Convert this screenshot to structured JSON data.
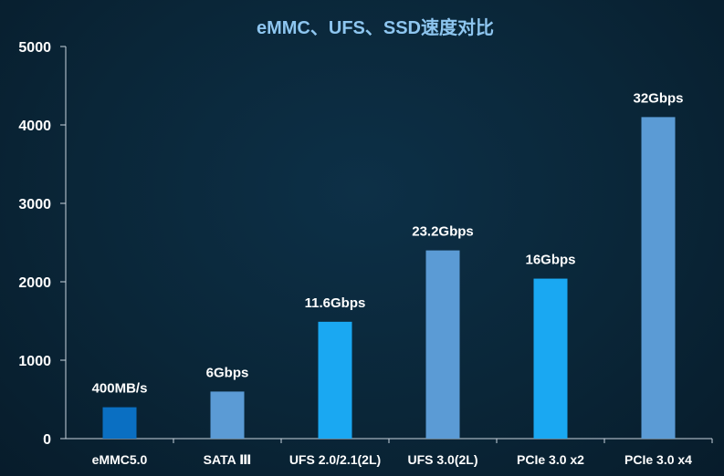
{
  "chart_data": {
    "type": "bar",
    "title": "eMMC、UFS、SSD速度对比",
    "xlabel": "",
    "ylabel": "",
    "ylim": [
      0,
      5000
    ],
    "yticks": [
      0,
      1000,
      2000,
      3000,
      4000,
      5000
    ],
    "grid": false,
    "categories": [
      "eMMC5.0",
      "SATA Ⅲ",
      "UFS 2.0/2.1(2L)",
      "UFS 3.0(2L)",
      "PCIe 3.0 x2",
      "PCIe 3.0 x4"
    ],
    "values": [
      400,
      600,
      1490,
      2400,
      2040,
      4100
    ],
    "data_labels": [
      "400MB/s",
      "6Gbps",
      "11.6Gbps",
      "23.2Gbps",
      "16Gbps",
      "32Gbps"
    ],
    "colors": [
      "#0a6fc2",
      "#5b9bd5",
      "#1aa8f2",
      "#5b9bd5",
      "#1aa8f2",
      "#5b9bd5"
    ],
    "axis_color": "#c9d4de",
    "title_color": "#8ec6f0"
  }
}
